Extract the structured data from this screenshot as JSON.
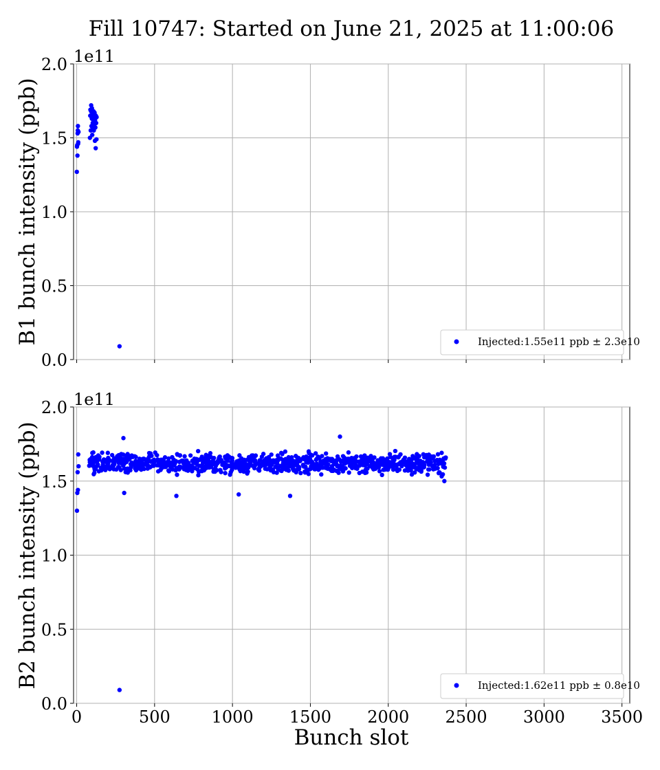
{
  "title": "Fill 10747: Started on June 21, 2025 at 11:00:06",
  "colors": {
    "points": "#0000ff",
    "grid": "#b0b0b0"
  },
  "chart_data": [
    {
      "type": "scatter",
      "xlabel": "",
      "ylabel": "B1 bunch intensity (ppb)",
      "scale_label": "1e11",
      "xlim": [
        -20,
        3550
      ],
      "ylim": [
        0,
        2.0
      ],
      "x_ticks": [
        0,
        500,
        1000,
        1500,
        2000,
        2500,
        3000,
        3500
      ],
      "x_tick_labels_visible": false,
      "y_ticks": [
        0.0,
        0.5,
        1.0,
        1.5,
        2.0
      ],
      "y_tick_labels": [
        "0.0",
        "0.5",
        "1.0",
        "1.5",
        "2.0"
      ],
      "grid": true,
      "legend_position": "lower-right",
      "series": [
        {
          "name": "Injected:1.55e11 ppb ± 2.3e10",
          "color": "#0000ff",
          "x": [
            1,
            2,
            3,
            5,
            6,
            7,
            8,
            9,
            10,
            12,
            85,
            87,
            88,
            90,
            92,
            93,
            95,
            97,
            98,
            100,
            102,
            103,
            105,
            107,
            108,
            110,
            112,
            113,
            115,
            117,
            118,
            120,
            122,
            123,
            125,
            127,
            128,
            275
          ],
          "y": [
            1.27,
            1.44,
            1.45,
            1.38,
            1.53,
            1.55,
            1.58,
            1.46,
            1.47,
            1.54,
            1.5,
            1.65,
            1.69,
            1.55,
            1.68,
            1.72,
            1.58,
            1.63,
            1.7,
            1.52,
            1.66,
            1.6,
            1.57,
            1.62,
            1.68,
            1.55,
            1.64,
            1.58,
            1.67,
            1.48,
            1.62,
            1.57,
            1.43,
            1.65,
            1.6,
            1.49,
            1.64,
            0.09
          ]
        }
      ]
    },
    {
      "type": "scatter",
      "xlabel": "Bunch slot",
      "ylabel": "B2 bunch intensity (ppb)",
      "scale_label": "1e11",
      "xlim": [
        -20,
        3550
      ],
      "ylim": [
        0,
        2.0
      ],
      "x_ticks": [
        0,
        500,
        1000,
        1500,
        2000,
        2500,
        3000,
        3500
      ],
      "x_tick_labels": [
        "0",
        "500",
        "1000",
        "1500",
        "2000",
        "2500",
        "3000",
        "3500"
      ],
      "y_ticks": [
        0.0,
        0.5,
        1.0,
        1.5,
        2.0
      ],
      "y_tick_labels": [
        "0.0",
        "0.5",
        "1.0",
        "1.5",
        "2.0"
      ],
      "grid": true,
      "legend_position": "lower-right",
      "series": [
        {
          "name": "Injected:1.62e11 ppb ± 0.8e10",
          "color": "#0000ff",
          "x": [
            2,
            4,
            6,
            8,
            10,
            12,
            275,
            300,
            305,
            640,
            1040,
            1370,
            1690,
            2360
          ],
          "y": [
            1.3,
            1.42,
            1.56,
            1.44,
            1.68,
            1.6,
            0.09,
            1.79,
            1.42,
            1.4,
            1.41,
            1.4,
            1.8,
            1.5
          ],
          "dense_band": {
            "x_range": [
              80,
              2370
            ],
            "typical_y_range": [
              1.5,
              1.74
            ],
            "center_y": 1.62
          }
        }
      ]
    }
  ]
}
